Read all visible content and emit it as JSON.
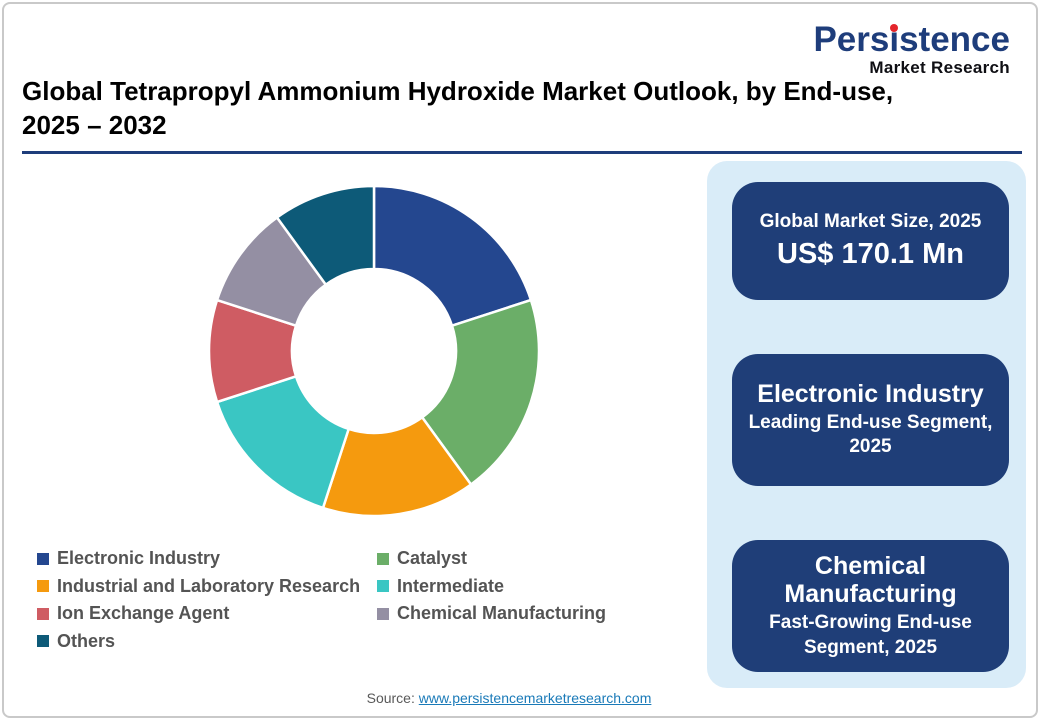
{
  "brand": {
    "name_pre": "Pers",
    "name_dot_letter": "i",
    "name_post": "stence",
    "tagline": "Market Research",
    "navy": "#1e3d7b",
    "red": "#e4252b"
  },
  "header": {
    "title_line1": "Global Tetrapropyl Ammonium Hydroxide Market Outlook, by End-use,",
    "title_line2": "2025 – 2032"
  },
  "chart_data": {
    "type": "pie",
    "donut": true,
    "title": "Global Tetrapropyl Ammonium Hydroxide Market Outlook, by End-use, 2025 – 2032",
    "start_angle_deg": 0,
    "direction": "clockwise",
    "inner_radius_ratio": 0.5,
    "legend_position": "bottom-left",
    "categories": [
      "Electronic Industry",
      "Catalyst",
      "Industrial and Laboratory Research",
      "Intermediate",
      "Ion Exchange Agent",
      "Chemical Manufacturing",
      "Others"
    ],
    "values": [
      20,
      20,
      15,
      15,
      10,
      10,
      10
    ],
    "value_unit": "percent-share-estimated-from-arc-angles",
    "colors": [
      "#24478f",
      "#6bae68",
      "#f59a0e",
      "#3ac6c3",
      "#cf5c63",
      "#948fa3",
      "#0d5a78"
    ]
  },
  "legend": {
    "col1": [
      {
        "label": "Electronic Industry",
        "color": "#24478f"
      },
      {
        "label": "Industrial and Laboratory Research",
        "color": "#f59a0e"
      },
      {
        "label": "Ion Exchange Agent",
        "color": "#cf5c63"
      },
      {
        "label": "Others",
        "color": "#0d5a78"
      }
    ],
    "col2": [
      {
        "label": "Catalyst",
        "color": "#6bae68"
      },
      {
        "label": "Intermediate",
        "color": "#3ac6c3"
      },
      {
        "label": "Chemical Manufacturing",
        "color": "#948fa3"
      }
    ]
  },
  "sidebar": {
    "panel_bg": "#d9ecf8",
    "card_bg": "#1f3e78",
    "cards": [
      {
        "title": "Global Market Size, 2025",
        "value": "US$ 170.1 Mn"
      },
      {
        "title": "Electronic Industry",
        "subtitle": "Leading End-use Segment, 2025"
      },
      {
        "title": "Chemical Manufacturing",
        "subtitle": "Fast-Growing End-use Segment, 2025"
      }
    ]
  },
  "footer": {
    "source_label": "Source:",
    "source_link": "www.persistencemarketresearch.com"
  }
}
